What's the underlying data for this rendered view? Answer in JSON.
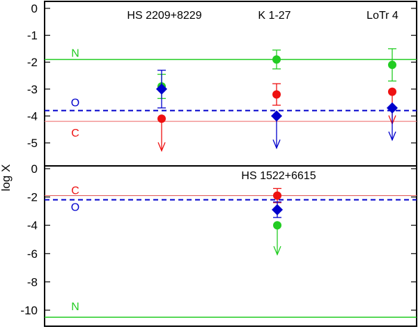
{
  "chart_data": [
    {
      "type": "scatter",
      "ylabel": "log X",
      "ylim": [
        -6.0,
        0.15
      ],
      "yticks": [
        0,
        -1,
        -2,
        -3,
        -4,
        -5
      ],
      "categories": [
        "HS 2209+8229",
        "K 1-27",
        "LoTr 4"
      ],
      "colors": {
        "N": "#22cc22",
        "O": "#0000cc",
        "C": "#ee1111"
      },
      "solar_lines": [
        {
          "element": "N",
          "value": -1.9,
          "style": "solid",
          "label": "N"
        },
        {
          "element": "O",
          "value": -3.8,
          "style": "dashed",
          "label": "O"
        },
        {
          "element": "C",
          "value": -4.2,
          "style": "solid",
          "label": "C"
        }
      ],
      "series": [
        {
          "element": "N",
          "marker": "circle",
          "points": [
            {
              "x": "HS 2209+8229",
              "y": -2.9,
              "err": 0.45
            },
            {
              "x": "K 1-27",
              "y": -1.9,
              "err": 0.35
            },
            {
              "x": "LoTr 4",
              "y": -2.1,
              "err": 0.6
            }
          ]
        },
        {
          "element": "C",
          "marker": "circle",
          "points": [
            {
              "x": "HS 2209+8229",
              "y": -4.1,
              "upper_limit": true
            },
            {
              "x": "K 1-27",
              "y": -3.2,
              "err": 0.4
            },
            {
              "x": "LoTr 4",
              "y": -3.1,
              "upper_limit": true
            }
          ]
        },
        {
          "element": "O",
          "marker": "diamond",
          "points": [
            {
              "x": "HS 2209+8229",
              "y": -3.0,
              "err": 0.7
            },
            {
              "x": "K 1-27",
              "y": -4.0,
              "upper_limit": true
            },
            {
              "x": "LoTr 4",
              "y": -3.7,
              "upper_limit": true
            }
          ]
        }
      ]
    },
    {
      "type": "scatter",
      "ylabel": "log X",
      "ylim": [
        -10.8,
        0.5
      ],
      "yticks": [
        0,
        -2,
        -4,
        -6,
        -8,
        -10
      ],
      "categories": [
        "HS 1522+6615"
      ],
      "colors": {
        "N": "#22cc22",
        "O": "#0000cc",
        "C": "#ee1111"
      },
      "solar_lines": [
        {
          "element": "C",
          "value": -1.9,
          "style": "solid",
          "label": "C"
        },
        {
          "element": "O",
          "value": -2.2,
          "style": "dashed",
          "label": "O"
        },
        {
          "element": "N",
          "value": -10.5,
          "style": "solid",
          "label": "N"
        }
      ],
      "series": [
        {
          "element": "C",
          "marker": "circle",
          "points": [
            {
              "x": "HS 1522+6615",
              "y": -1.9,
              "err": 0.5
            }
          ]
        },
        {
          "element": "O",
          "marker": "diamond",
          "points": [
            {
              "x": "HS 1522+6615",
              "y": -2.9,
              "err": 0.55
            }
          ]
        },
        {
          "element": "N",
          "marker": "circle",
          "points": [
            {
              "x": "HS 1522+6615",
              "y": -4.0,
              "upper_limit": true
            }
          ]
        }
      ]
    }
  ]
}
